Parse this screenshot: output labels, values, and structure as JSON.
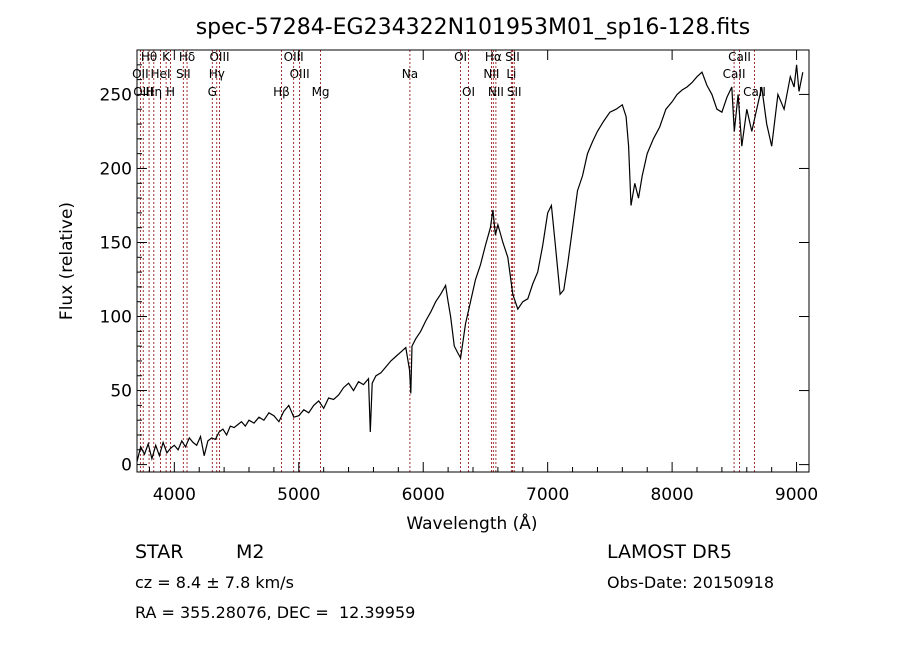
{
  "chart_data": {
    "type": "line",
    "title": "spec-57284-EG234322N101953M01_sp16-128.fits",
    "xlabel": "Wavelength (Å)",
    "ylabel": "Flux (relative)",
    "xlim": [
      3700,
      9100
    ],
    "ylim": [
      -5,
      280
    ],
    "xticks": [
      4000,
      5000,
      6000,
      7000,
      8000,
      9000
    ],
    "yticks": [
      0,
      50,
      100,
      150,
      200,
      250
    ],
    "grid": false,
    "line_color": "#000000",
    "marker_color": "#8b0000",
    "series": [
      {
        "x": [
          3700,
          3730,
          3760,
          3790,
          3820,
          3850,
          3880,
          3910,
          3940,
          3970,
          4000,
          4030,
          4060,
          4090,
          4120,
          4150,
          4180,
          4210,
          4240,
          4270,
          4300,
          4330,
          4360,
          4390,
          4420,
          4450,
          4480,
          4510,
          4540,
          4570,
          4600,
          4640,
          4680,
          4720,
          4760,
          4800,
          4840,
          4880,
          4920,
          4960,
          5000,
          5040,
          5080,
          5120,
          5160,
          5200,
          5240,
          5280,
          5320,
          5360,
          5400,
          5440,
          5480,
          5520,
          5560,
          5575,
          5590,
          5620,
          5660,
          5700,
          5740,
          5780,
          5820,
          5860,
          5890,
          5900,
          5910,
          5940,
          5980,
          6020,
          6060,
          6100,
          6140,
          6180,
          6200,
          6220,
          6250,
          6280,
          6300,
          6340,
          6380,
          6420,
          6460,
          6500,
          6540,
          6560,
          6580,
          6600,
          6640,
          6680,
          6720,
          6760,
          6800,
          6840,
          6880,
          6920,
          6960,
          7000,
          7030,
          7060,
          7100,
          7130,
          7160,
          7200,
          7240,
          7280,
          7320,
          7360,
          7400,
          7450,
          7500,
          7550,
          7600,
          7630,
          7650,
          7670,
          7700,
          7730,
          7760,
          7800,
          7850,
          7900,
          7950,
          8000,
          8040,
          8080,
          8120,
          8160,
          8200,
          8240,
          8280,
          8320,
          8360,
          8400,
          8440,
          8480,
          8500,
          8530,
          8560,
          8600,
          8640,
          8680,
          8720,
          8760,
          8800,
          8850,
          8900,
          8950,
          8980,
          9000,
          9020,
          9050
        ],
        "y": [
          2,
          12,
          7,
          14,
          4,
          13,
          6,
          15,
          8,
          11,
          13,
          10,
          16,
          12,
          18,
          15,
          13,
          19,
          6,
          16,
          18,
          17,
          22,
          24,
          20,
          26,
          25,
          27,
          29,
          26,
          30,
          28,
          32,
          30,
          35,
          33,
          29,
          36,
          40,
          32,
          33,
          37,
          35,
          40,
          43,
          38,
          45,
          44,
          47,
          52,
          55,
          50,
          56,
          54,
          58,
          22,
          55,
          60,
          62,
          66,
          70,
          73,
          76,
          79,
          64,
          48,
          80,
          85,
          90,
          97,
          103,
          110,
          115,
          121,
          110,
          100,
          80,
          75,
          72,
          95,
          110,
          125,
          135,
          148,
          160,
          172,
          155,
          162,
          150,
          140,
          115,
          105,
          110,
          112,
          122,
          130,
          148,
          170,
          175,
          150,
          115,
          118,
          135,
          160,
          185,
          195,
          210,
          218,
          225,
          232,
          238,
          240,
          243,
          235,
          215,
          175,
          190,
          180,
          195,
          210,
          220,
          228,
          240,
          245,
          250,
          253,
          255,
          258,
          262,
          265,
          256,
          250,
          240,
          238,
          248,
          255,
          225,
          250,
          215,
          240,
          225,
          240,
          255,
          230,
          215,
          250,
          240,
          262,
          255,
          270,
          252,
          265
        ]
      }
    ],
    "spectral_lines": [
      {
        "label": "Hθ",
        "x": 3797,
        "row": 0
      },
      {
        "label": "OII",
        "x": 3727,
        "row": 1
      },
      {
        "label": "OIII",
        "x": 3750,
        "row": 2
      },
      {
        "label": "Hη",
        "x": 3835,
        "row": 2
      },
      {
        "label": "HeI",
        "x": 3889,
        "row": 1
      },
      {
        "label": "K",
        "x": 3934,
        "row": 0
      },
      {
        "label": "H",
        "x": 3969,
        "row": 2
      },
      {
        "label": "SII",
        "x": 4072,
        "row": 1
      },
      {
        "label": "Hδ",
        "x": 4102,
        "row": 0
      },
      {
        "label": "Hγ",
        "x": 4341,
        "row": 1
      },
      {
        "label": "G",
        "x": 4305,
        "row": 2
      },
      {
        "label": "OIII",
        "x": 4363,
        "row": 0
      },
      {
        "label": "Hβ",
        "x": 4861,
        "row": 2
      },
      {
        "label": "OIII",
        "x": 4959,
        "row": 0
      },
      {
        "label": "OIII",
        "x": 5007,
        "row": 1
      },
      {
        "label": "Mg",
        "x": 5175,
        "row": 2
      },
      {
        "label": "Na",
        "x": 5893,
        "row": 1
      },
      {
        "label": "OI",
        "x": 6300,
        "row": 0
      },
      {
        "label": "OI",
        "x": 6364,
        "row": 2
      },
      {
        "label": "Hα",
        "x": 6563,
        "row": 0
      },
      {
        "label": "NII",
        "x": 6548,
        "row": 1
      },
      {
        "label": "NII",
        "x": 6584,
        "row": 2
      },
      {
        "label": "SII",
        "x": 6717,
        "row": 0
      },
      {
        "label": "Li",
        "x": 6708,
        "row": 1
      },
      {
        "label": "SII",
        "x": 6731,
        "row": 2
      },
      {
        "label": "CaII",
        "x": 8498,
        "row": 1
      },
      {
        "label": "CaII",
        "x": 8542,
        "row": 0
      },
      {
        "label": "CaII",
        "x": 8662,
        "row": 2
      }
    ]
  },
  "info": {
    "class": "STAR",
    "subclass": "M2",
    "survey": "LAMOST DR5",
    "cz": "cz = 8.4 ± 7.8 km/s",
    "obs_date": "Obs-Date: 20150918",
    "radec": "RA = 355.28076, DEC =  12.39959"
  }
}
